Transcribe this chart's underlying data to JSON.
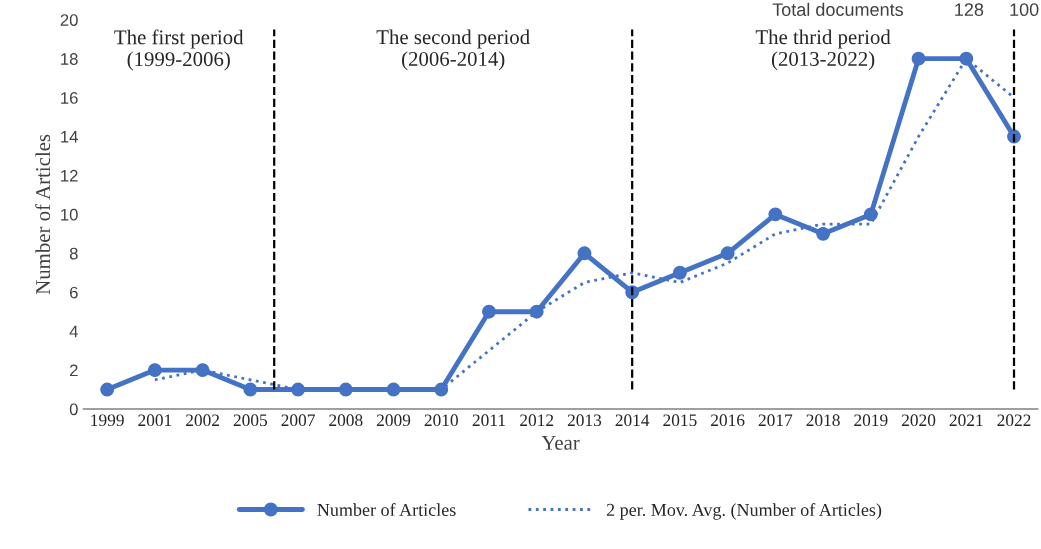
{
  "chart_data": {
    "type": "line",
    "xlabel": "Year",
    "ylabel": "Number of Articles",
    "categories": [
      "1999",
      "2001",
      "2002",
      "2005",
      "2007",
      "2008",
      "2009",
      "2010",
      "2011",
      "2012",
      "2013",
      "2014",
      "2015",
      "2016",
      "2017",
      "2018",
      "2019",
      "2020",
      "2021",
      "2022"
    ],
    "series": [
      {
        "name": "Number of Articles",
        "color": "#4472c4",
        "marker": "circle",
        "line_style": "solid",
        "values": [
          1,
          2,
          2,
          1,
          1,
          1,
          1,
          1,
          5,
          5,
          8,
          6,
          7,
          8,
          10,
          9,
          10,
          18,
          18,
          14
        ]
      },
      {
        "name": "2 per. Mov. Avg. (Number of Articles)",
        "color": "#4472c4",
        "marker": "none",
        "line_style": "dotted",
        "values": [
          null,
          1.5,
          2,
          1.5,
          1,
          1,
          1,
          1,
          3,
          5,
          6.5,
          7,
          6.5,
          7.5,
          9,
          9.5,
          9.5,
          14,
          18,
          16
        ]
      }
    ],
    "ylim": [
      0,
      20
    ],
    "yticks": [
      0,
      2,
      4,
      6,
      8,
      10,
      12,
      14,
      16,
      18,
      20
    ],
    "grid": false,
    "legend": "bottom",
    "ref_lines": [
      {
        "axis": "x",
        "value": "2014",
        "color": "#000000",
        "line_style": "dashed"
      },
      {
        "axis": "x",
        "value": "2022",
        "color": "#000000",
        "line_style": "dashed"
      }
    ],
    "annotations": [
      "The first period\n(1999-2006)",
      "The second period\n(2006-2014)",
      "The thrid period\n(2013-2022)",
      "Total documents          128     100"
    ]
  }
}
